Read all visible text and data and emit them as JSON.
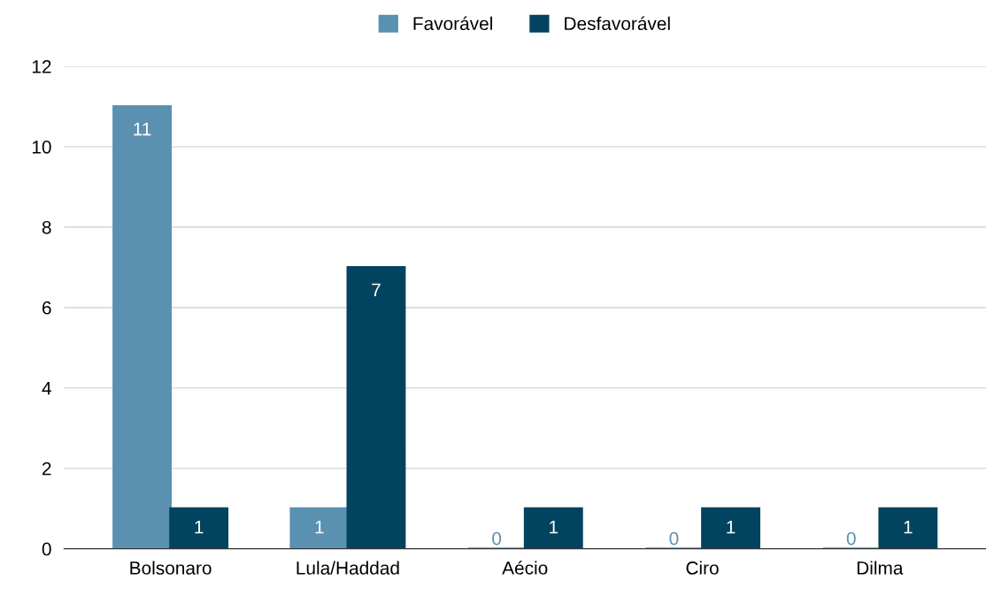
{
  "chart_data": {
    "type": "bar",
    "categories": [
      "Bolsonaro",
      "Lula/Haddad",
      "Aécio",
      "Ciro",
      "Dilma"
    ],
    "series": [
      {
        "name": "Favorável",
        "color": "#5a91b0",
        "values": [
          11,
          1,
          0,
          0,
          0
        ]
      },
      {
        "name": "Desfavorável",
        "color": "#02445f",
        "values": [
          1,
          7,
          1,
          1,
          1
        ]
      }
    ],
    "ylim": [
      0,
      12
    ],
    "yticks": [
      0,
      2,
      4,
      6,
      8,
      10,
      12
    ],
    "grid": "y",
    "legend": "top",
    "data_labels": true
  }
}
